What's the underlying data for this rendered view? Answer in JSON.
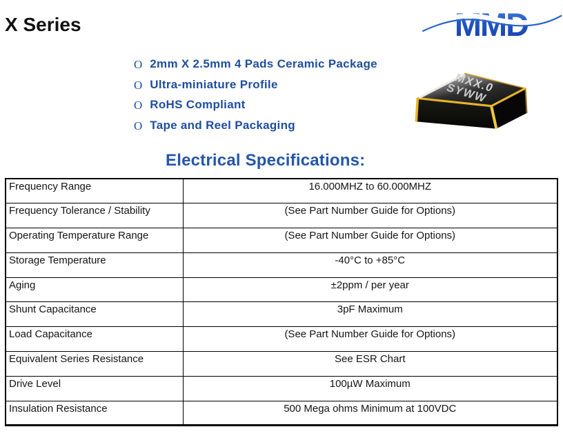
{
  "colors": {
    "accent_blue": "#1F4E9E",
    "heading_blue": "#2456A8",
    "logo_blue_light": "#4B84DC",
    "logo_blue_mid": "#2257C4",
    "logo_blue_dark": "#163EAE",
    "gold": "#E8B52A",
    "table_border": "#000000"
  },
  "header": {
    "title": "X Series",
    "logo_text": "MMD"
  },
  "features": {
    "bullet_glyph": "O",
    "items": [
      "2mm X 2.5mm 4 Pads Ceramic Package",
      "Ultra-miniature Profile",
      "RoHS Compliant",
      "Tape and Reel Packaging"
    ]
  },
  "product_image": {
    "marking_line1": "MXX.0",
    "marking_line2": "SYWW"
  },
  "specs": {
    "heading": "Electrical Specifications:",
    "table": {
      "rows": [
        {
          "parameter": "Frequency Range",
          "value": "16.000MHZ to 60.000MHZ"
        },
        {
          "parameter": "Frequency Tolerance / Stability",
          "value": "(See Part Number Guide for Options)"
        },
        {
          "parameter": "Operating Temperature Range",
          "value": "(See Part Number Guide for Options)"
        },
        {
          "parameter": "Storage Temperature",
          "value": "-40°C to +85°C"
        },
        {
          "parameter": "Aging",
          "value": "±2ppm / per year"
        },
        {
          "parameter": "Shunt Capacitance",
          "value": "3pF Maximum"
        },
        {
          "parameter": "Load Capacitance",
          "value": "(See Part Number Guide for Options)"
        },
        {
          "parameter": "Equivalent Series Resistance",
          "value": "See ESR Chart"
        },
        {
          "parameter": "Drive Level",
          "value": "100µW Maximum"
        },
        {
          "parameter": "Insulation Resistance",
          "value": "500 Mega ohms Minimum at 100VDC"
        }
      ]
    }
  }
}
